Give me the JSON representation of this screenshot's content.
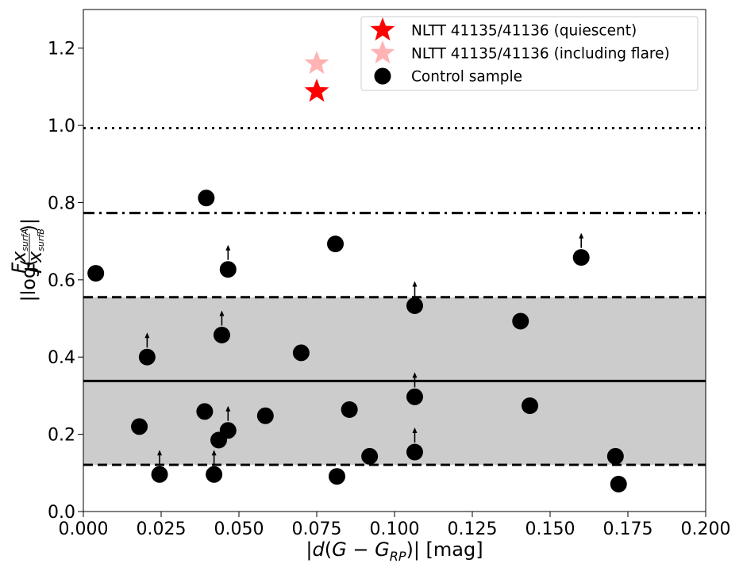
{
  "chart_data": {
    "type": "scatter",
    "xlabel": "|d(G − G_RP)| [mag]",
    "ylabel": "|log(Fx_surfA / Fx_surfB)|",
    "xlim": [
      0.0,
      0.2
    ],
    "ylim": [
      0.0,
      1.3
    ],
    "x_ticks": [
      "0.000",
      "0.025",
      "0.050",
      "0.075",
      "0.100",
      "0.125",
      "0.150",
      "0.175",
      "0.200"
    ],
    "y_ticks": [
      "0.0",
      "0.2",
      "0.4",
      "0.6",
      "0.8",
      "1.0",
      "1.2"
    ],
    "grid": false,
    "legend_position": "top-right",
    "shaded_band": {
      "y_from": 0.121,
      "y_to": 0.555,
      "color": "#cccccc"
    },
    "horizontal_lines": [
      {
        "y": 0.993,
        "style": "dotted"
      },
      {
        "y": 0.773,
        "style": "dashdot"
      },
      {
        "y": 0.555,
        "style": "dashed"
      },
      {
        "y": 0.338,
        "style": "solid"
      },
      {
        "y": 0.121,
        "style": "dashed"
      }
    ],
    "series": [
      {
        "name": "NLTT 41135/41136 (quiescent)",
        "marker": "star",
        "color": "#ff0000",
        "points": [
          [
            0.075,
            1.088
          ]
        ]
      },
      {
        "name": "NLTT 41135/41136 (including flare)",
        "marker": "star",
        "color": "#ffb3b3",
        "points": [
          [
            0.075,
            1.16
          ]
        ]
      },
      {
        "name": "Control sample",
        "marker": "circle",
        "color": "#000000",
        "points": [
          [
            0.004,
            0.617
          ],
          [
            0.0395,
            0.812
          ],
          [
            0.081,
            0.693
          ],
          [
            0.0465,
            0.627
          ],
          [
            0.16,
            0.658
          ],
          [
            0.1065,
            0.533
          ],
          [
            0.1405,
            0.493
          ],
          [
            0.0445,
            0.457
          ],
          [
            0.07,
            0.411
          ],
          [
            0.0205,
            0.4
          ],
          [
            0.018,
            0.22
          ],
          [
            0.039,
            0.259
          ],
          [
            0.0435,
            0.185
          ],
          [
            0.0465,
            0.21
          ],
          [
            0.0585,
            0.248
          ],
          [
            0.0855,
            0.264
          ],
          [
            0.1065,
            0.297
          ],
          [
            0.1435,
            0.274
          ],
          [
            0.0245,
            0.096
          ],
          [
            0.042,
            0.096
          ],
          [
            0.0815,
            0.091
          ],
          [
            0.092,
            0.143
          ],
          [
            0.1065,
            0.154
          ],
          [
            0.171,
            0.143
          ],
          [
            0.172,
            0.071
          ]
        ]
      }
    ],
    "lower_limit_arrows_at_x": [
      0.0465,
      0.16,
      0.1065,
      0.0445,
      0.0205,
      0.0245,
      0.042
    ]
  }
}
